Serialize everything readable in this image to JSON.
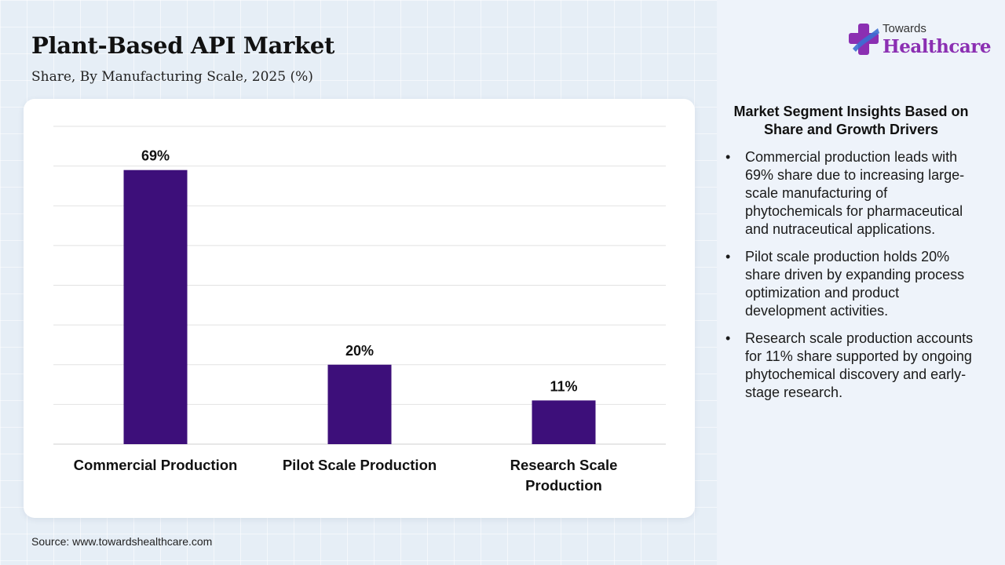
{
  "header": {
    "title": "Plant-Based API Market",
    "subtitle": "Share, By Manufacturing Scale, 2025 (%)"
  },
  "logo": {
    "top_text": "Towards",
    "main_text": "Healthcare"
  },
  "chart_data": {
    "type": "bar",
    "categories": [
      "Commercial Production",
      "Pilot Scale Production",
      "Research Scale Production"
    ],
    "values": [
      69,
      20,
      11
    ],
    "value_labels": [
      "69%",
      "20%",
      "11%"
    ],
    "title": "",
    "xlabel": "",
    "ylabel": "",
    "ylim": [
      0,
      80
    ],
    "grid": true,
    "bar_color": "#3d0f7a"
  },
  "insights": {
    "title": "Market Segment Insights Based on Share and Growth Drivers",
    "items": [
      "Commercial production leads with 69% share due to increasing large-scale manufacturing of phytochemicals for pharmaceutical and nutraceutical applications.",
      "Pilot scale production holds 20% share driven by expanding process optimization and product development activities.",
      "Research scale production accounts for 11% share supported by ongoing phytochemical discovery and early-stage research."
    ]
  },
  "footer": {
    "source": "Source: www.towardshealthcare.com"
  },
  "colors": {
    "bar": "#3d0f7a",
    "brand": "#8b2fb2",
    "logo_accent": "#3b6fd1"
  }
}
